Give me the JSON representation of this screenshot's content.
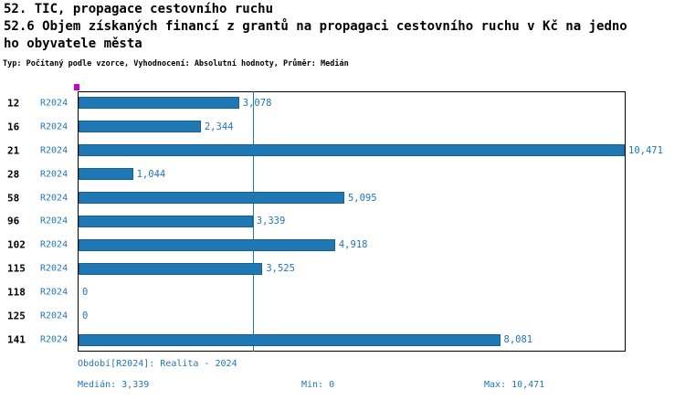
{
  "header": {
    "line1": "52. TIC, propagace cestovního ruchu",
    "line2": "52.6 Objem získaných financí z grantů na propagaci cestovního ruchu v Kč na jedno",
    "line3": "ho obyvatele města",
    "meta": "Typ: Počítaný podle vzorce, Vyhodnocení: Absolutní hodnoty, Průměr: Medián"
  },
  "chart_data": {
    "type": "bar",
    "orientation": "horizontal",
    "title": "52.6 Objem získaných financí z grantů na propagaci cestovního ruchu v Kč na jednoho obyvatele města",
    "categories": [
      "12",
      "16",
      "21",
      "28",
      "58",
      "96",
      "102",
      "115",
      "118",
      "125",
      "141"
    ],
    "period_label": "R2024",
    "series": [
      {
        "name": "R2024",
        "values": [
          3078,
          2344,
          10471,
          1044,
          5095,
          3339,
          4918,
          3525,
          0,
          0,
          8081
        ]
      }
    ],
    "value_labels": [
      "3,078",
      "2,344",
      "10,471",
      "1,044",
      "5,095",
      "3,339",
      "4,918",
      "3,525",
      "0",
      "0",
      "8,081"
    ],
    "xlim": [
      0,
      10471
    ],
    "median": 3339,
    "grid": false,
    "legend": "none",
    "bar_color": "#1f77b4",
    "median_line_color": "#1f77b4"
  },
  "footer": {
    "period": "Období[R2024]: Realita - 2024",
    "median": "Medián: 3,339",
    "min": "Min: 0",
    "max": "Max: 10,471"
  },
  "colors": {
    "accent": "#1f77b4",
    "marker": "#cc00cc",
    "frame": "#000000",
    "text": "#000000"
  }
}
